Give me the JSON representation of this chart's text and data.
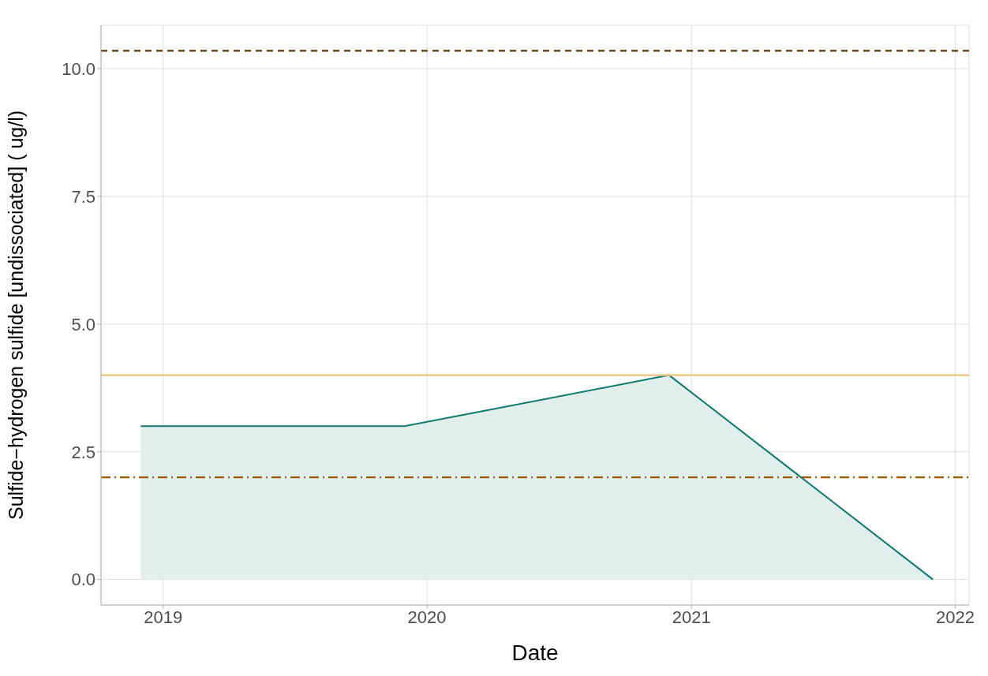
{
  "chart_data": {
    "type": "area",
    "xlabel": "Date",
    "ylabel": "Sulfide−hydrogen sulfide [undissociated] ( ug/l)",
    "x": [
      "2018-12-01",
      "2019-12-01",
      "2020-12-01",
      "2021-12-01"
    ],
    "series": [
      {
        "color": "#117a6f",
        "values": [
          3,
          3,
          4,
          0
        ]
      }
    ],
    "xlim": [
      "2018-10-07",
      "2022-01-20"
    ],
    "xticks": [
      {
        "value": "2019-01-01",
        "label": "2019"
      },
      {
        "value": "2020-01-01",
        "label": "2020"
      },
      {
        "value": "2021-01-01",
        "label": "2021"
      },
      {
        "value": "2022-01-01",
        "label": "2022"
      }
    ],
    "ylim": [
      -0.5,
      10.85
    ],
    "yticks": [
      {
        "value": 0,
        "label": "0.0"
      },
      {
        "value": 2.5,
        "label": "2.5"
      },
      {
        "value": 5,
        "label": "5.0"
      },
      {
        "value": 7.5,
        "label": "7.5"
      },
      {
        "value": 10,
        "label": "10.0"
      }
    ],
    "ref_lines": [
      {
        "axis": "y",
        "value": 10.35,
        "label": null,
        "color": "#5a3608",
        "line_style": "dashed"
      },
      {
        "axis": "y",
        "value": 4,
        "label": null,
        "color": "#e9c27c",
        "line_style": "solid"
      },
      {
        "axis": "y",
        "value": 2,
        "label": null,
        "color": "#9a5a06",
        "line_style": "dashdot"
      }
    ],
    "grid": true
  }
}
